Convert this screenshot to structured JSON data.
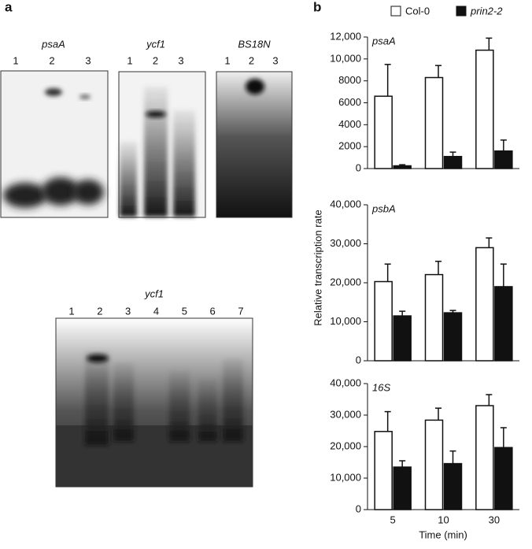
{
  "panel_labels": [
    "a",
    "b"
  ],
  "gels": [
    {
      "title": "psaA",
      "lanes": [
        "1",
        "2",
        "3"
      ]
    },
    {
      "title": "ycf1",
      "lanes": [
        "1",
        "2",
        "3"
      ]
    },
    {
      "title": "BS18N",
      "lanes": [
        "1",
        "2",
        "3"
      ]
    },
    {
      "title": "ycf1",
      "lanes": [
        "1",
        "2",
        "3",
        "4",
        "5",
        "6",
        "7"
      ]
    }
  ],
  "y_label": "Relative transcription rate",
  "x_label": "Time (min)",
  "chart_data": [
    {
      "type": "bar",
      "title": "psaA",
      "categories": [
        null,
        null,
        null
      ],
      "ylim": [
        0,
        12000
      ],
      "yticks": [
        0,
        2000,
        4000,
        6000,
        8000,
        {
          "value": 10000,
          "label": "10,000"
        },
        {
          "value": 12000,
          "label": "12,000"
        }
      ],
      "series": [
        {
          "name": "Col-0",
          "color": "#ffffff",
          "values": [
            6600,
            8300,
            10800
          ],
          "errors": [
            2900,
            1100,
            1100
          ]
        },
        {
          "name": "prin2-2",
          "color": "#111111",
          "values": [
            250,
            1100,
            1600
          ],
          "errors": [
            100,
            400,
            1000
          ]
        }
      ]
    },
    {
      "type": "bar",
      "title": "psbA",
      "categories": [
        null,
        null,
        null
      ],
      "ylim": [
        0,
        40000
      ],
      "yticks": [
        0,
        {
          "value": 10000,
          "label": "10,000"
        },
        {
          "value": 20000,
          "label": "20,000"
        },
        {
          "value": 30000,
          "label": "30,000"
        },
        {
          "value": 40000,
          "label": "40,000"
        }
      ],
      "series": [
        {
          "color": "#ffffff",
          "values": [
            20300,
            22100,
            29000
          ],
          "errors": [
            4500,
            3400,
            2500
          ]
        },
        {
          "color": "#111111",
          "values": [
            11500,
            12300,
            19000
          ],
          "errors": [
            1200,
            600,
            5800
          ]
        }
      ]
    },
    {
      "type": "bar",
      "title": "16S",
      "categories": [
        "5",
        "10",
        "30"
      ],
      "ylim": [
        0,
        40000
      ],
      "yticks": [
        0,
        {
          "value": 10000,
          "label": "10,000"
        },
        {
          "value": 20000,
          "label": "20,000"
        },
        {
          "value": 30000,
          "label": "30,000"
        },
        {
          "value": 40000,
          "label": "40,000"
        }
      ],
      "series": [
        {
          "color": "#ffffff",
          "values": [
            24800,
            28400,
            33000
          ],
          "errors": [
            6300,
            3800,
            3500
          ]
        },
        {
          "color": "#111111",
          "values": [
            13500,
            14600,
            19700
          ],
          "errors": [
            2000,
            4000,
            6300
          ]
        }
      ]
    }
  ]
}
